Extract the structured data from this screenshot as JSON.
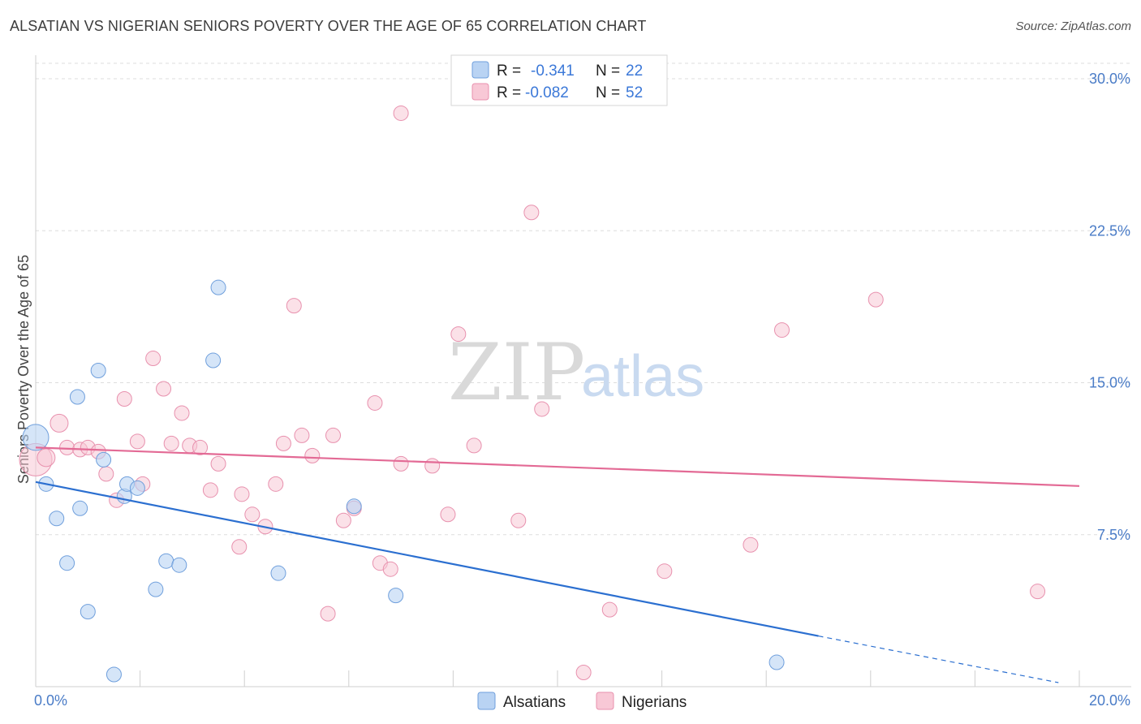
{
  "title": "ALSATIAN VS NIGERIAN SENIORS POVERTY OVER THE AGE OF 65 CORRELATION CHART",
  "source": "Source: ZipAtlas.com",
  "watermark": {
    "zip": "ZIP",
    "atlas": "atlas"
  },
  "colors": {
    "alsatians_fill": "#b9d3f3",
    "alsatians_stroke": "#6f9fdc",
    "alsatians_line": "#2b6fd0",
    "nigerians_fill": "#f8c8d6",
    "nigerians_stroke": "#e891ae",
    "nigerians_line": "#e36a95",
    "grid": "#dddddd",
    "axis_text": "#4a7cc7"
  },
  "legend": {
    "rows": [
      {
        "r_label": "R = ",
        "r_value": "-0.341",
        "n_label": "N = ",
        "n_value": "22"
      },
      {
        "r_label": "R = ",
        "r_value": "-0.082",
        "n_label": "N = ",
        "n_value": "52"
      }
    ]
  },
  "bottom_legend": [
    "Alsatians",
    "Nigerians"
  ],
  "chart_data": {
    "type": "scatter",
    "title": "ALSATIAN VS NIGERIAN SENIORS POVERTY OVER THE AGE OF 65 CORRELATION CHART",
    "xlabel": "",
    "ylabel": "Seniors Poverty Over the Age of 65",
    "xlim": [
      0,
      20
    ],
    "ylim": [
      0,
      31
    ],
    "x_tick_labels": [
      "0.0%",
      "20.0%"
    ],
    "y_ticks": [
      7.5,
      15.0,
      22.5,
      30.0
    ],
    "y_tick_labels": [
      "7.5%",
      "15.0%",
      "22.5%",
      "30.0%"
    ],
    "grid": true,
    "legend_position": "top-center",
    "series": [
      {
        "name": "Alsatians",
        "r": -0.341,
        "n": 22,
        "trend": {
          "x0": 0,
          "y0": 10.1,
          "x1": 15.0,
          "y1": 2.5,
          "dashed_to_x": 19.6,
          "dashed_to_y": 0.2
        },
        "points": [
          [
            0.0,
            12.3,
            16
          ],
          [
            0.2,
            10.0,
            9
          ],
          [
            0.4,
            8.3,
            9
          ],
          [
            0.6,
            6.1,
            9
          ],
          [
            0.8,
            14.3,
            9
          ],
          [
            0.85,
            8.8,
            9
          ],
          [
            1.0,
            3.7,
            9
          ],
          [
            1.2,
            15.6,
            9
          ],
          [
            1.3,
            11.2,
            9
          ],
          [
            1.5,
            0.6,
            9
          ],
          [
            1.7,
            9.4,
            9
          ],
          [
            1.75,
            10.0,
            9
          ],
          [
            1.95,
            9.8,
            9
          ],
          [
            2.3,
            4.8,
            9
          ],
          [
            2.5,
            6.2,
            9
          ],
          [
            2.75,
            6.0,
            9
          ],
          [
            3.4,
            16.1,
            9
          ],
          [
            3.5,
            19.7,
            9
          ],
          [
            4.65,
            5.6,
            9
          ],
          [
            6.1,
            8.9,
            9
          ],
          [
            6.9,
            4.5,
            9
          ],
          [
            14.2,
            1.2,
            9
          ]
        ]
      },
      {
        "name": "Nigerians",
        "r": -0.082,
        "n": 52,
        "trend": {
          "x0": 0,
          "y0": 11.8,
          "x1": 20.0,
          "y1": 9.9
        },
        "points": [
          [
            0.0,
            11.2,
            20
          ],
          [
            0.2,
            11.3,
            11
          ],
          [
            0.45,
            13.0,
            11
          ],
          [
            0.6,
            11.8,
            9
          ],
          [
            0.85,
            11.7,
            9
          ],
          [
            1.0,
            11.8,
            9
          ],
          [
            1.2,
            11.6,
            9
          ],
          [
            1.35,
            10.5,
            9
          ],
          [
            1.55,
            9.2,
            9
          ],
          [
            1.7,
            14.2,
            9
          ],
          [
            1.95,
            12.1,
            9
          ],
          [
            2.05,
            10.0,
            9
          ],
          [
            2.25,
            16.2,
            9
          ],
          [
            2.45,
            14.7,
            9
          ],
          [
            2.6,
            12.0,
            9
          ],
          [
            2.8,
            13.5,
            9
          ],
          [
            2.95,
            11.9,
            9
          ],
          [
            3.15,
            11.8,
            9
          ],
          [
            3.35,
            9.7,
            9
          ],
          [
            3.5,
            11.0,
            9
          ],
          [
            3.9,
            6.9,
            9
          ],
          [
            3.95,
            9.5,
            9
          ],
          [
            4.15,
            8.5,
            9
          ],
          [
            4.4,
            7.9,
            9
          ],
          [
            4.6,
            10.0,
            9
          ],
          [
            4.75,
            12.0,
            9
          ],
          [
            4.95,
            18.8,
            9
          ],
          [
            5.1,
            12.4,
            9
          ],
          [
            5.3,
            11.4,
            9
          ],
          [
            5.6,
            3.6,
            9
          ],
          [
            5.7,
            12.4,
            9
          ],
          [
            5.9,
            8.2,
            9
          ],
          [
            6.1,
            8.8,
            9
          ],
          [
            6.5,
            14.0,
            9
          ],
          [
            6.6,
            6.1,
            9
          ],
          [
            6.8,
            5.8,
            9
          ],
          [
            7.0,
            11.0,
            9
          ],
          [
            7.0,
            28.3,
            9
          ],
          [
            7.6,
            10.9,
            9
          ],
          [
            7.9,
            8.5,
            9
          ],
          [
            8.1,
            17.4,
            9
          ],
          [
            8.4,
            11.9,
            9
          ],
          [
            9.25,
            8.2,
            9
          ],
          [
            9.5,
            23.4,
            9
          ],
          [
            9.7,
            13.7,
            9
          ],
          [
            10.5,
            0.7,
            9
          ],
          [
            11.0,
            3.8,
            9
          ],
          [
            12.05,
            5.7,
            9
          ],
          [
            13.7,
            7.0,
            9
          ],
          [
            14.3,
            17.6,
            9
          ],
          [
            16.1,
            19.1,
            9
          ],
          [
            19.2,
            4.7,
            9
          ]
        ]
      }
    ]
  }
}
